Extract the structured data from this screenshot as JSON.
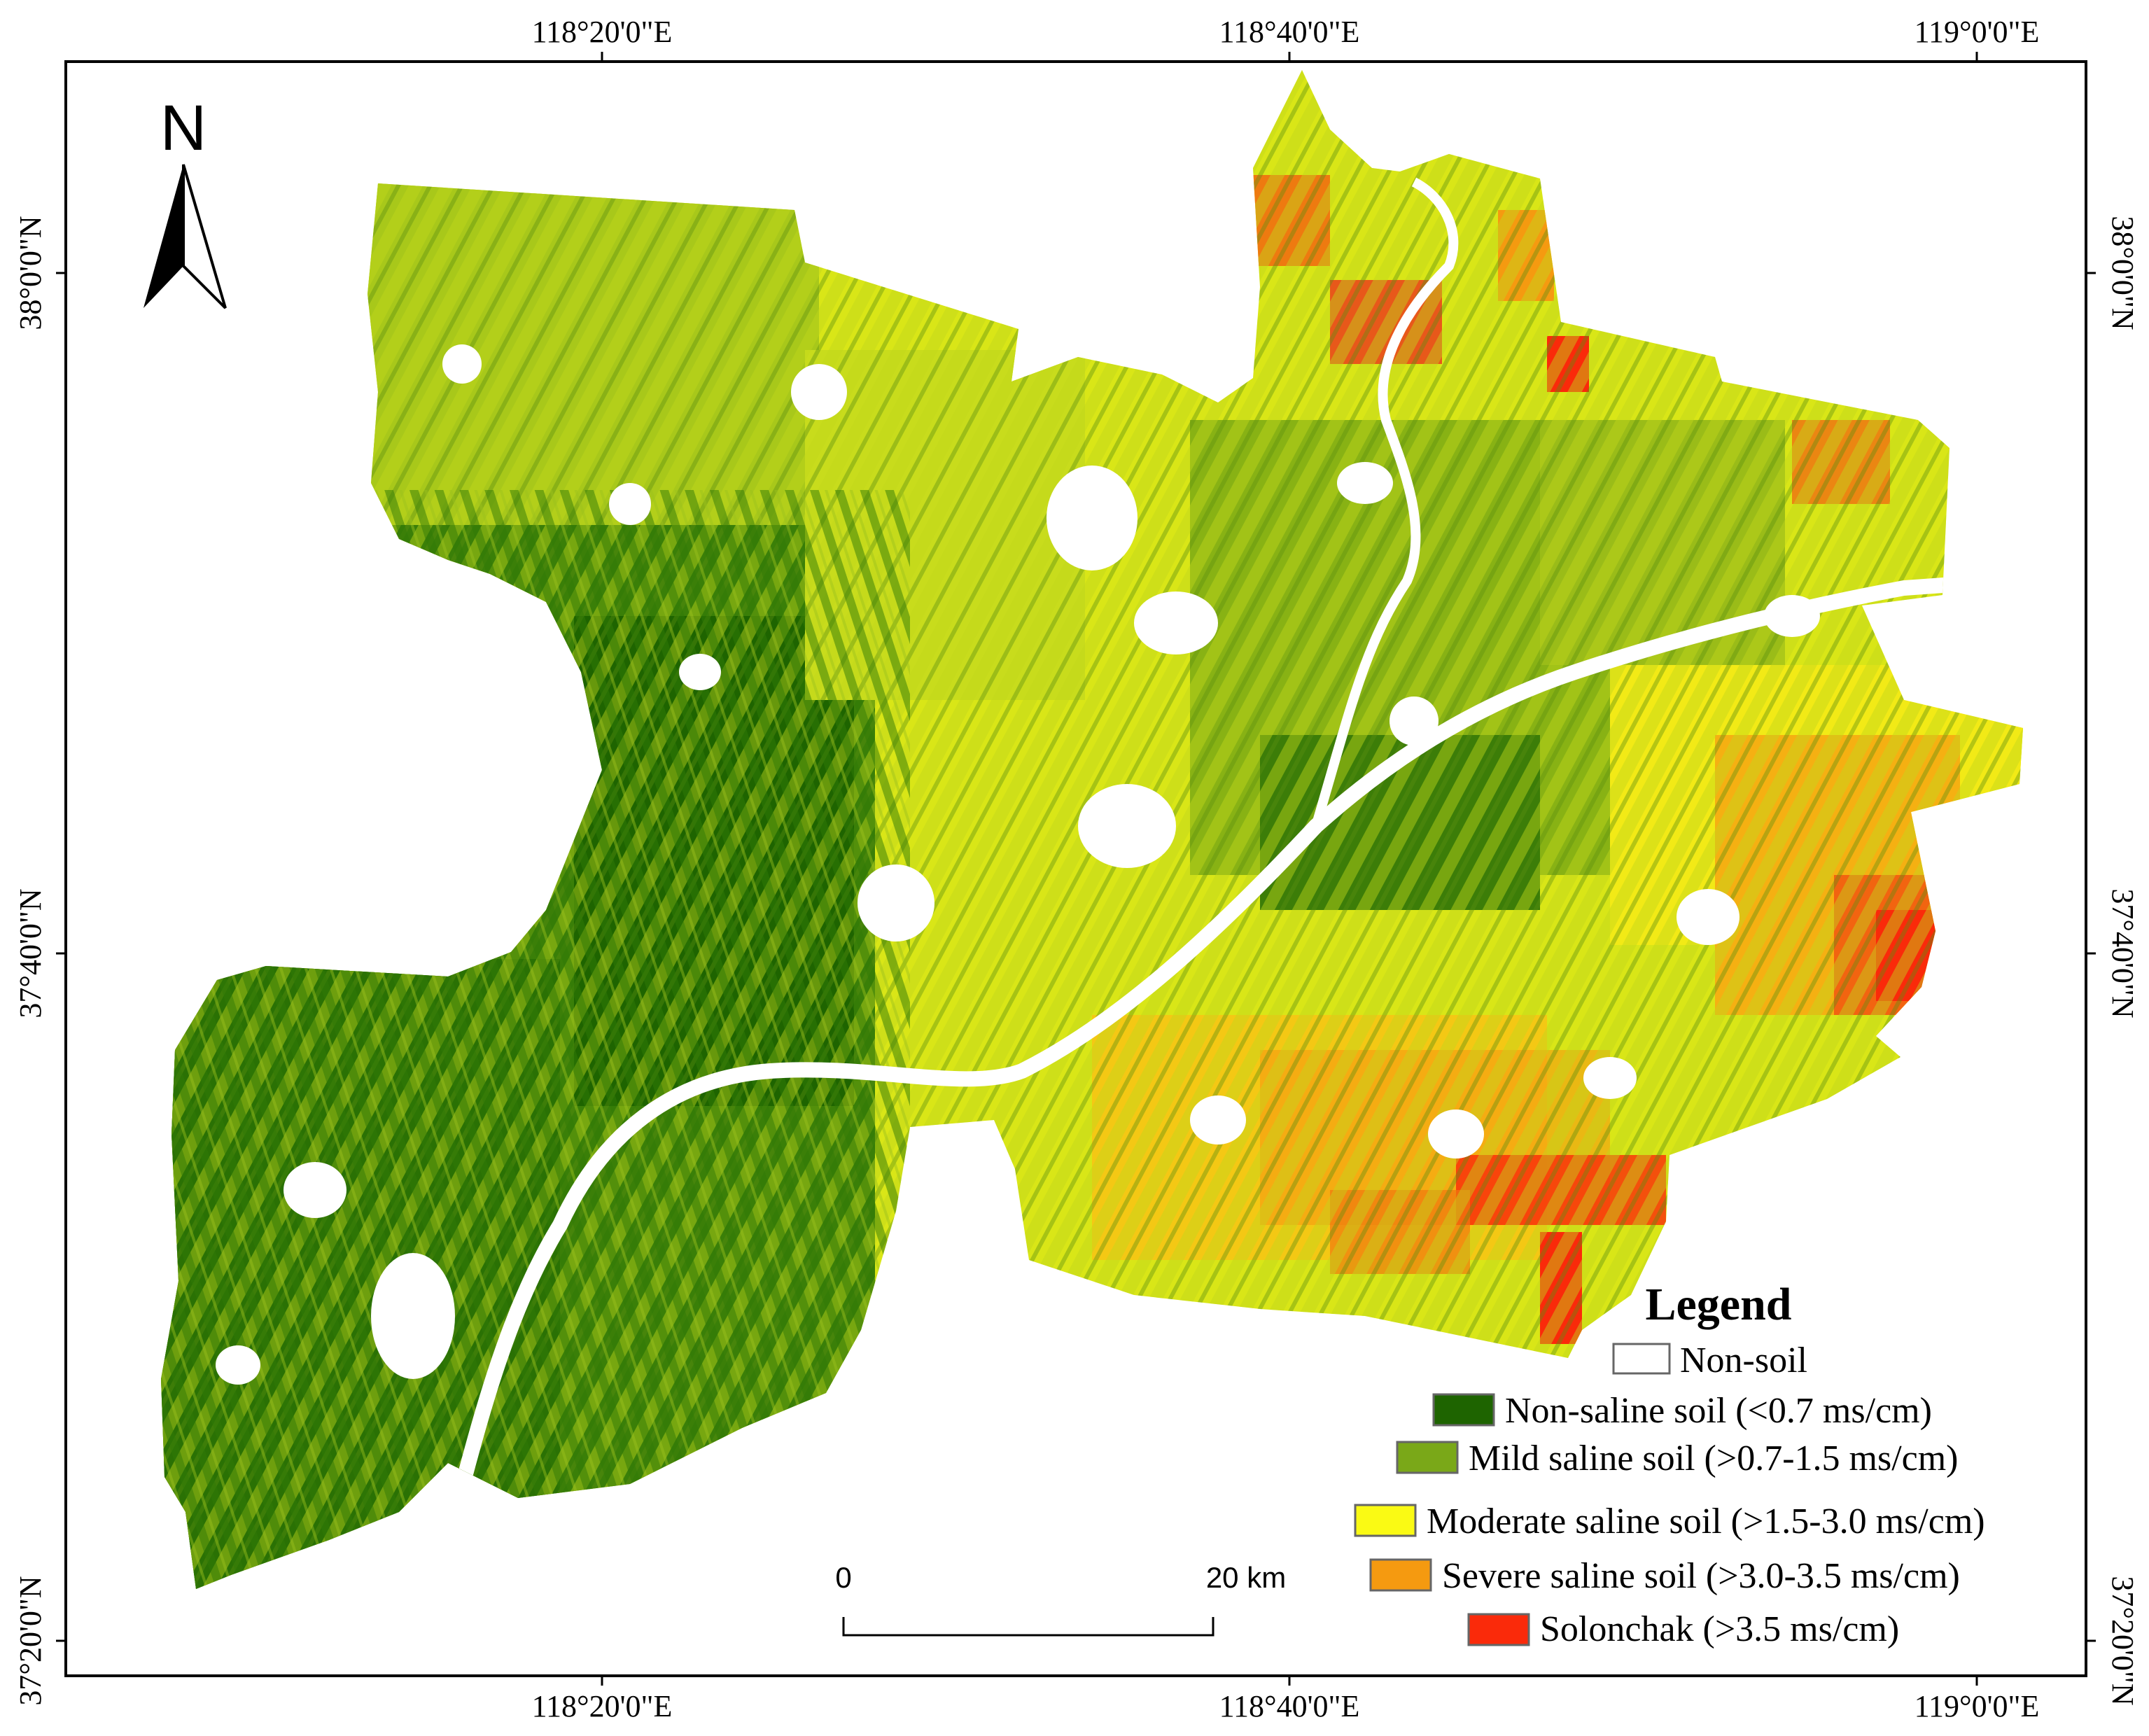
{
  "map": {
    "top_labels": [
      "118°20'0\"E",
      "118°40'0\"E",
      "119°0'0\"E"
    ],
    "bottom_labels": [
      "118°20'0\"E",
      "118°40'0\"E",
      "119°0'0\"E"
    ],
    "left_labels": [
      "38°0'0\"N",
      "37°40'0\"N",
      "37°20'0\"N"
    ],
    "right_labels": [
      "38°0'0\"N",
      "37°40'0\"N",
      "37°20'0\"N"
    ],
    "north_label": "N",
    "north_arrow_icon": "north-arrow-icon"
  },
  "scale_bar": {
    "start_label": "0",
    "end_label": "20 km"
  },
  "legend": {
    "title": "Legend",
    "items": [
      {
        "label": "Non-soil",
        "color": "#ffffff"
      },
      {
        "label": "Non-saline soil (<0.7 ms/cm)",
        "color": "#1e6400"
      },
      {
        "label": "Mild saline soil (>0.7-1.5 ms/cm)",
        "color": "#7aa818"
      },
      {
        "label": "Moderate saline soil (>1.5-3.0 ms/cm)",
        "color": "#fafa14"
      },
      {
        "label": "Severe saline soil (>3.0-3.5 ms/cm)",
        "color": "#f59a10"
      },
      {
        "label": "Solonchak (>3.5 ms/cm)",
        "color": "#fa2a0a"
      }
    ]
  }
}
